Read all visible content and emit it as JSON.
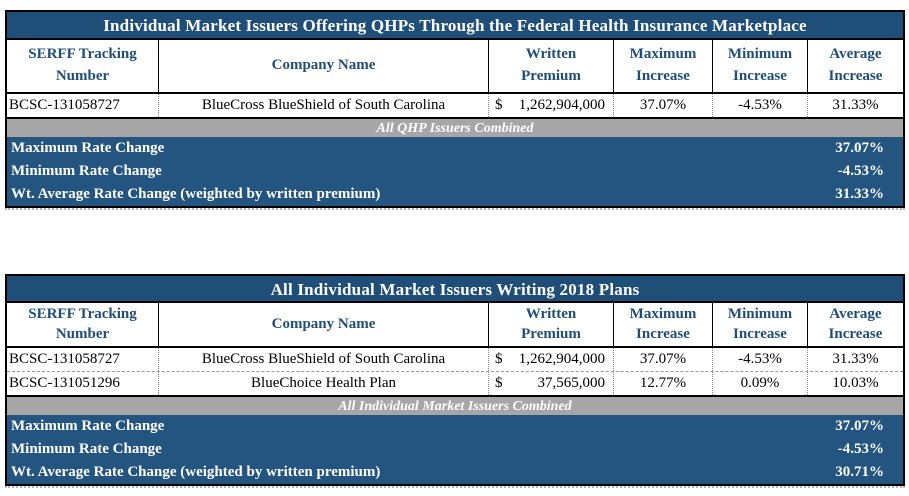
{
  "colors": {
    "title_bar_bg": "#1F4E79",
    "summary_bg": "#235580",
    "band_bg": "#A6A6A6",
    "header_text": "#1F4E79"
  },
  "tables": [
    {
      "title": "Individual Market Issuers Offering QHPs Through the Federal Health Insurance Marketplace",
      "columns": [
        "SERFF Tracking Number",
        "Company Name",
        "Written Premium",
        "Maximum Increase",
        "Minimum Increase",
        "Average Increase"
      ],
      "rows": [
        {
          "serff": "BCSC-131058727",
          "company": "BlueCross BlueShield of South Carolina",
          "premium_symbol": "$",
          "premium_amount": "1,262,904,000",
          "max_increase": "37.07%",
          "min_increase": "-4.53%",
          "avg_increase": "31.33%"
        }
      ],
      "band_label": "All QHP Issuers Combined",
      "summary": [
        {
          "label": "Maximum Rate Change",
          "value": "37.07%"
        },
        {
          "label": "Minimum Rate Change",
          "value": "-4.53%"
        },
        {
          "label": "Wt. Average Rate Change (weighted by written premium)",
          "value": "31.33%"
        }
      ]
    },
    {
      "title": "All Individual Market Issuers Writing 2018 Plans",
      "columns": [
        "SERFF Tracking Number",
        "Company Name",
        "Written Premium",
        "Maximum Increase",
        "Minimum Increase",
        "Average Increase"
      ],
      "rows": [
        {
          "serff": "BCSC-131058727",
          "company": "BlueCross BlueShield of South Carolina",
          "premium_symbol": "$",
          "premium_amount": "1,262,904,000",
          "max_increase": "37.07%",
          "min_increase": "-4.53%",
          "avg_increase": "31.33%"
        },
        {
          "serff": "BCSC-131051296",
          "company": "BlueChoice Health Plan",
          "premium_symbol": "$",
          "premium_amount": "37,565,000",
          "max_increase": "12.77%",
          "min_increase": "0.09%",
          "avg_increase": "10.03%"
        }
      ],
      "band_label": "All Individual Market Issuers Combined",
      "summary": [
        {
          "label": "Maximum Rate Change",
          "value": "37.07%"
        },
        {
          "label": "Minimum Rate Change",
          "value": "-4.53%"
        },
        {
          "label": "Wt. Average Rate Change (weighted by written premium)",
          "value": "30.71%"
        }
      ]
    }
  ]
}
